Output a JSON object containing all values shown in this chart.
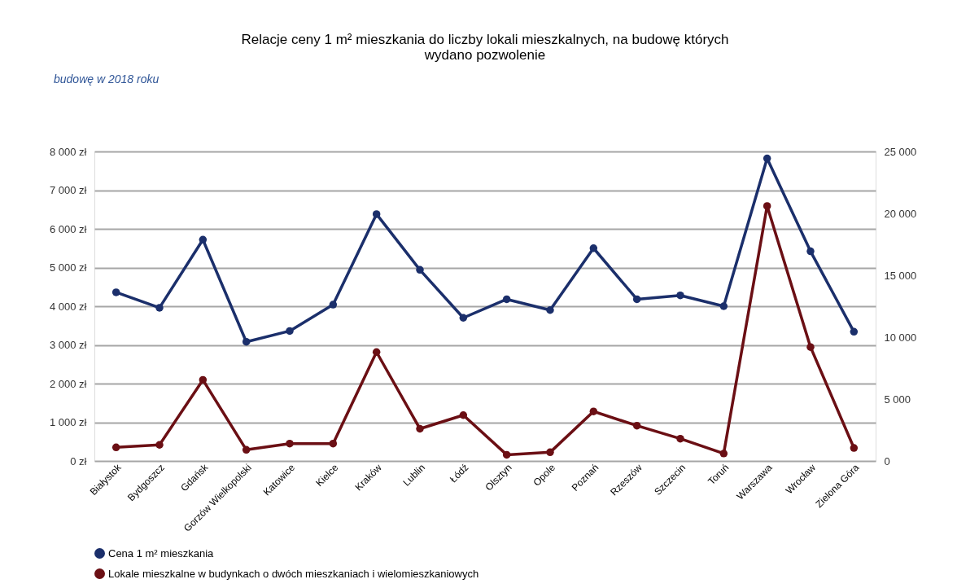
{
  "chart_data": {
    "type": "line",
    "title": "Relacje ceny 1 m² mieszkania do liczby lokali mieszkalnych, na budowę których wydano pozwolenie",
    "annotations": [
      "budowę w 2018 roku"
    ],
    "categories": [
      "Białystok",
      "Bydgoszcz",
      "Gdańsk",
      "Gorzów Wielkopolski",
      "Katowice",
      "Kielce",
      "Kraków",
      "Lublin",
      "Łódź",
      "Olsztyn",
      "Opole",
      "Poznań",
      "Rzeszów",
      "Szczecin",
      "Toruń",
      "Warszawa",
      "Wrocław",
      "Zielona Góra"
    ],
    "series": [
      {
        "name": "Cena 1 m² mieszkania",
        "color": "#1b2f6b",
        "axis": "y",
        "values": [
          4360,
          3960,
          5720,
          3080,
          3360,
          4040,
          6380,
          4940,
          3700,
          4180,
          3900,
          5500,
          4180,
          4280,
          4000,
          7820,
          5420,
          3340
        ]
      },
      {
        "name": "Lokale mieszkalne w budynkach o dwóch mieszkaniach i wielomieszkaniowych",
        "color": "#6b0f14",
        "axis": "y2",
        "values": [
          1100,
          1300,
          6550,
          900,
          1400,
          1400,
          8800,
          2600,
          3700,
          500,
          700,
          4000,
          2850,
          1800,
          600,
          20600,
          9200,
          1050
        ]
      }
    ],
    "ylim": [
      0,
      8000
    ],
    "yticks": [
      {
        "value": 0,
        "label": "0 zł"
      },
      {
        "value": 1000,
        "label": "1 000 zł"
      },
      {
        "value": 2000,
        "label": "2 000 zł"
      },
      {
        "value": 3000,
        "label": "3 000 zł"
      },
      {
        "value": 4000,
        "label": "4 000 zł"
      },
      {
        "value": 5000,
        "label": "5 000 zł"
      },
      {
        "value": 6000,
        "label": "6 000 zł"
      },
      {
        "value": 7000,
        "label": "7 000 zł"
      },
      {
        "value": 8000,
        "label": "8 000 zł"
      }
    ],
    "y2lim": [
      0,
      25000
    ],
    "y2ticks": [
      0,
      {
        "value": 5000,
        "label": "5 000"
      },
      {
        "value": 10000,
        "label": "10 000"
      },
      {
        "value": 15000,
        "label": "15 000"
      },
      {
        "value": 20000,
        "label": "20 000"
      },
      {
        "value": 25000,
        "label": "25 000"
      }
    ],
    "grid": "y",
    "legend": "bottom",
    "marker": "circle",
    "line_style": "solid"
  }
}
